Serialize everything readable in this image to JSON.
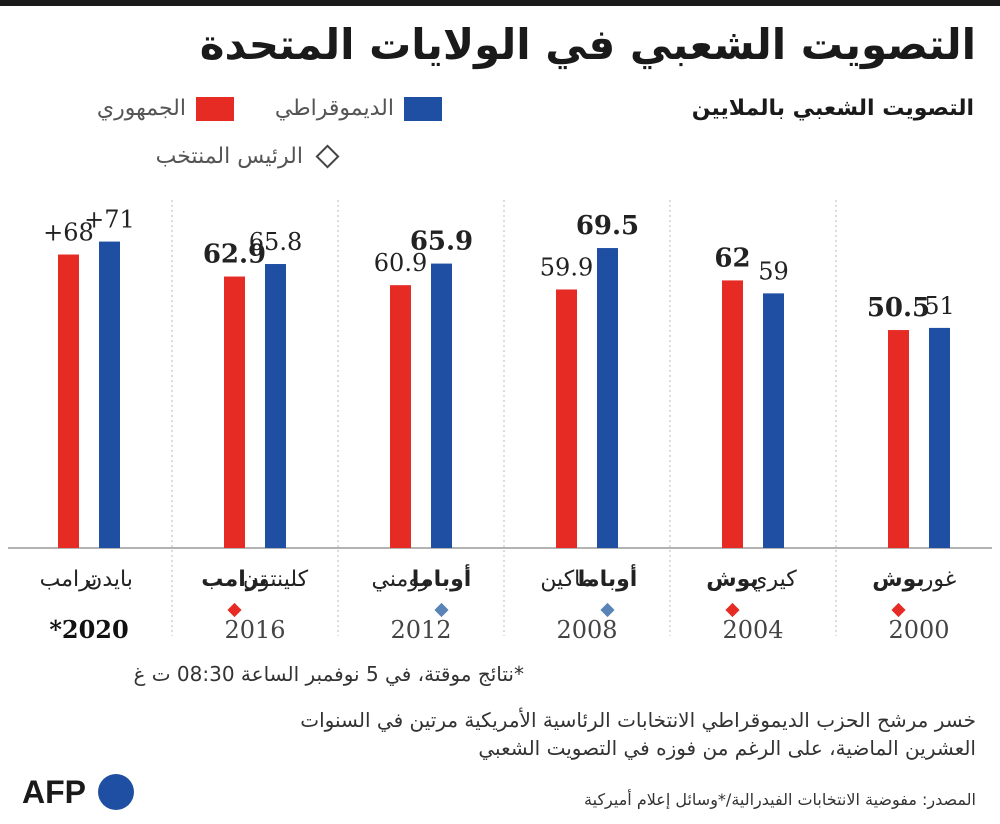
{
  "title": "التصويت الشعبي في الولايات المتحدة",
  "subtitle": "التصويت الشعبي بالملايين",
  "legend": {
    "dem_label": "الديموقراطي",
    "rep_label": "الجمهوري",
    "winner_label": "الرئيس المنتخب"
  },
  "colors": {
    "dem": "#1f4fa3",
    "rep": "#e52b23",
    "winner_rep": "#e52b23",
    "winner_dem": "#5a84b8",
    "afp_blue": "#1f4fa3"
  },
  "chart_data": {
    "type": "bar",
    "ylabel": "التصويت الشعبي بالملايين",
    "ylim": [
      0,
      76
    ],
    "grid": false,
    "legend_position": "top",
    "elections": [
      {
        "year": "2000",
        "year_bold": false,
        "dem_candidate": "غور",
        "rep_candidate": "بوش",
        "dem_value": 51,
        "rep_value": 50.5,
        "dem_label": "51",
        "rep_label": "50.5",
        "winner": "rep"
      },
      {
        "year": "2004",
        "year_bold": false,
        "dem_candidate": "كيري",
        "rep_candidate": "بوش",
        "dem_value": 59,
        "rep_value": 62,
        "dem_label": "59",
        "rep_label": "62",
        "winner": "rep"
      },
      {
        "year": "2008",
        "year_bold": false,
        "dem_candidate": "أوباما",
        "rep_candidate": "ماكين",
        "dem_value": 69.5,
        "rep_value": 59.9,
        "dem_label": "69.5",
        "rep_label": "59.9",
        "winner": "dem"
      },
      {
        "year": "2012",
        "year_bold": false,
        "dem_candidate": "أوباما",
        "rep_candidate": "رومني",
        "dem_value": 65.9,
        "rep_value": 60.9,
        "dem_label": "65.9",
        "rep_label": "60.9",
        "winner": "dem"
      },
      {
        "year": "2016",
        "year_bold": false,
        "dem_candidate": "كلينتون",
        "rep_candidate": "ترامب",
        "dem_value": 65.8,
        "rep_value": 62.9,
        "dem_label": "65.8",
        "rep_label": "62.9",
        "winner": "rep"
      },
      {
        "year": "2020*",
        "year_bold": true,
        "dem_candidate": "بايدن",
        "rep_candidate": "ترامب",
        "dem_value": 71,
        "rep_value": 68,
        "dem_label": "71+",
        "rep_label": "68+",
        "winner": null
      }
    ]
  },
  "footnote": "*نتائج موقتة، في 5 نوفمبر الساعة 08:30 ت غ",
  "note": "خسر مرشح الحزب الديموقراطي الانتخابات الرئاسية الأمريكية مرتين في السنوات العشرين الماضية، على الرغم من فوزه في التصويت الشعبي",
  "source": "المصدر: مفوضية الانتخابات الفيدرالية/*وسائل إعلام أميركية",
  "logo_text": "AFP"
}
